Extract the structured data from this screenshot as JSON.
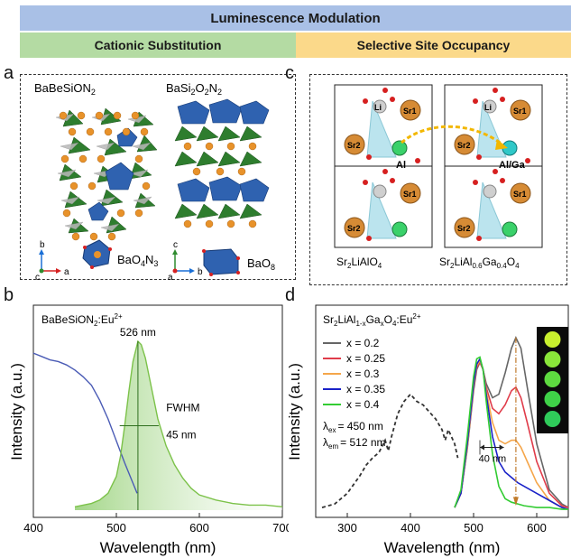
{
  "header": {
    "title": "Luminescence Modulation",
    "left_section": "Cationic Substitution",
    "right_section": "Selective Site Occupancy"
  },
  "panel_a": {
    "letter": "a",
    "compound_left": "BaBeSiON",
    "compound_left_sub": "2",
    "compound_right_pre": "BaSi",
    "compound_right_sub1": "2",
    "compound_right_mid": "O",
    "compound_right_sub2": "2",
    "compound_right_end": "N",
    "compound_right_sub3": "2",
    "poly_left": "BaO",
    "poly_left_sub1": "4",
    "poly_left_mid": "N",
    "poly_left_sub2": "3",
    "poly_right": "BaO",
    "poly_right_sub": "8",
    "axes_left": {
      "b": "b",
      "a": "a",
      "c": "c"
    },
    "axes_right": {
      "c": "c",
      "b": "b",
      "a": "a"
    }
  },
  "panel_c": {
    "letter": "c",
    "atoms": {
      "li": "Li",
      "sr1": "Sr1",
      "sr2": "Sr2",
      "al": "Al",
      "alga": "Al/Ga"
    },
    "label_left_pre": "Sr",
    "label_left_sub": "2",
    "label_left_post": "LiAlO",
    "label_left_sub2": "4",
    "label_right_pre": "Sr",
    "label_right_sub1": "2",
    "label_right_mid": "LiAl",
    "label_right_sub2": "0.6",
    "label_right_ga": "Ga",
    "label_right_sub3": "0.4",
    "label_right_o": "O",
    "label_right_sub4": "4"
  },
  "panel_b": {
    "letter": "b",
    "title_pre": "BaBeSiON",
    "title_sub": "2",
    "title_post": ":Eu",
    "title_sup": "2+",
    "peak_label": "526 nm",
    "fwhm_label": "FWHM",
    "fwhm_value": "45 nm",
    "xlabel": "Wavelength (nm)",
    "ylabel": "Intensity (a.u.)",
    "colors": {
      "excitation": "#4a5bb5",
      "emission": "#7cc24a",
      "fill": "#cfe8b8"
    }
  },
  "panel_d": {
    "letter": "d",
    "title_pre": "Sr",
    "title_sub1": "2",
    "title_mid": "LiAl",
    "title_sub2": "1-x",
    "title_ga": "Ga",
    "title_sub3": "x",
    "title_o": "O",
    "title_sub4": "4",
    "title_post": ":Eu",
    "title_sup": "2+",
    "lambda_ex": "= 450 nm",
    "lambda_em": "= 512 nm",
    "lambda_sym": "λ",
    "ex_sub": "ex",
    "em_sub": "em",
    "shift_label": "40 nm",
    "xlabel": "Wavelength (nm)",
    "ylabel": "Intensity (a.u.)"
  },
  "chart_data": [
    {
      "type": "line",
      "panel": "b",
      "xlabel": "Wavelength (nm)",
      "ylabel": "Intensity (a.u.)",
      "xlim": [
        400,
        700
      ],
      "xticks": [
        400,
        500,
        600,
        700
      ],
      "series": [
        {
          "x": [
            400,
            410,
            420,
            430,
            440,
            450,
            460,
            470,
            480,
            490,
            500,
            510,
            520,
            525
          ],
          "y": [
            0.93,
            0.91,
            0.89,
            0.88,
            0.86,
            0.83,
            0.79,
            0.74,
            0.65,
            0.54,
            0.41,
            0.28,
            0.16,
            0.1
          ],
          "color": "#4a5bb5"
        },
        {
          "x": [
            450,
            470,
            480,
            490,
            500,
            505,
            510,
            515,
            520,
            526,
            530,
            535,
            540,
            545,
            550,
            560,
            570,
            580,
            590,
            600,
            620,
            640,
            660,
            680,
            700
          ],
          "y": [
            0.02,
            0.04,
            0.06,
            0.1,
            0.2,
            0.32,
            0.5,
            0.7,
            0.88,
            1.0,
            0.98,
            0.9,
            0.78,
            0.66,
            0.54,
            0.38,
            0.27,
            0.19,
            0.13,
            0.09,
            0.06,
            0.04,
            0.03,
            0.03,
            0.02
          ],
          "color": "#7cc24a"
        }
      ]
    },
    {
      "type": "line",
      "panel": "d",
      "xlabel": "Wavelength (nm)",
      "ylabel": "Intensity (a.u.)",
      "xlim": [
        250,
        650
      ],
      "xticks": [
        300,
        400,
        500,
        600
      ],
      "series": [
        {
          "name": "x = 0.2",
          "color": "#666666",
          "x": [
            470,
            480,
            490,
            500,
            505,
            510,
            515,
            520,
            530,
            540,
            550,
            560,
            567,
            575,
            585,
            600,
            620,
            640,
            650
          ],
          "y": [
            0.02,
            0.1,
            0.35,
            0.68,
            0.8,
            0.84,
            0.8,
            0.72,
            0.64,
            0.66,
            0.78,
            0.92,
            0.98,
            0.92,
            0.7,
            0.38,
            0.12,
            0.04,
            0.02
          ]
        },
        {
          "name": "x = 0.25",
          "color": "#e03c4a",
          "x": [
            470,
            480,
            490,
            500,
            505,
            510,
            515,
            520,
            530,
            540,
            550,
            560,
            567,
            575,
            585,
            600,
            620,
            640,
            650
          ],
          "y": [
            0.02,
            0.1,
            0.36,
            0.7,
            0.81,
            0.84,
            0.8,
            0.7,
            0.58,
            0.55,
            0.6,
            0.68,
            0.7,
            0.64,
            0.5,
            0.28,
            0.1,
            0.03,
            0.02
          ]
        },
        {
          "name": "x = 0.3",
          "color": "#f5a64a",
          "x": [
            470,
            480,
            490,
            500,
            505,
            510,
            515,
            520,
            530,
            540,
            550,
            560,
            567,
            575,
            585,
            600,
            620,
            640,
            650
          ],
          "y": [
            0.02,
            0.1,
            0.36,
            0.71,
            0.82,
            0.85,
            0.8,
            0.68,
            0.5,
            0.4,
            0.38,
            0.4,
            0.4,
            0.36,
            0.28,
            0.16,
            0.06,
            0.02,
            0.01
          ]
        },
        {
          "name": "x = 0.35",
          "color": "#1a22c8",
          "x": [
            470,
            480,
            490,
            500,
            505,
            510,
            515,
            520,
            530,
            540,
            550,
            560,
            570,
            580,
            600,
            620,
            640,
            650
          ],
          "y": [
            0.02,
            0.1,
            0.38,
            0.72,
            0.83,
            0.86,
            0.8,
            0.66,
            0.42,
            0.28,
            0.22,
            0.19,
            0.16,
            0.14,
            0.1,
            0.06,
            0.02,
            0.01
          ]
        },
        {
          "name": "x = 0.4",
          "color": "#33cc33",
          "x": [
            470,
            480,
            490,
            500,
            505,
            510,
            515,
            520,
            530,
            540,
            550,
            560,
            570,
            580,
            600,
            620,
            640,
            650
          ],
          "y": [
            0.02,
            0.12,
            0.42,
            0.76,
            0.86,
            0.87,
            0.8,
            0.62,
            0.32,
            0.14,
            0.07,
            0.05,
            0.04,
            0.03,
            0.02,
            0.02,
            0.01,
            0.01
          ]
        },
        {
          "name": "excitation",
          "color": "#333333",
          "style": "dashed",
          "x": [
            260,
            280,
            300,
            320,
            330,
            340,
            350,
            360,
            365,
            370,
            380,
            390,
            400,
            410,
            420,
            430,
            440,
            450,
            455,
            460,
            465,
            470,
            475
          ],
          "y": [
            0.02,
            0.04,
            0.1,
            0.2,
            0.26,
            0.3,
            0.33,
            0.4,
            0.34,
            0.42,
            0.55,
            0.62,
            0.66,
            0.62,
            0.6,
            0.56,
            0.52,
            0.46,
            0.4,
            0.46,
            0.42,
            0.38,
            0.3
          ]
        }
      ]
    }
  ]
}
